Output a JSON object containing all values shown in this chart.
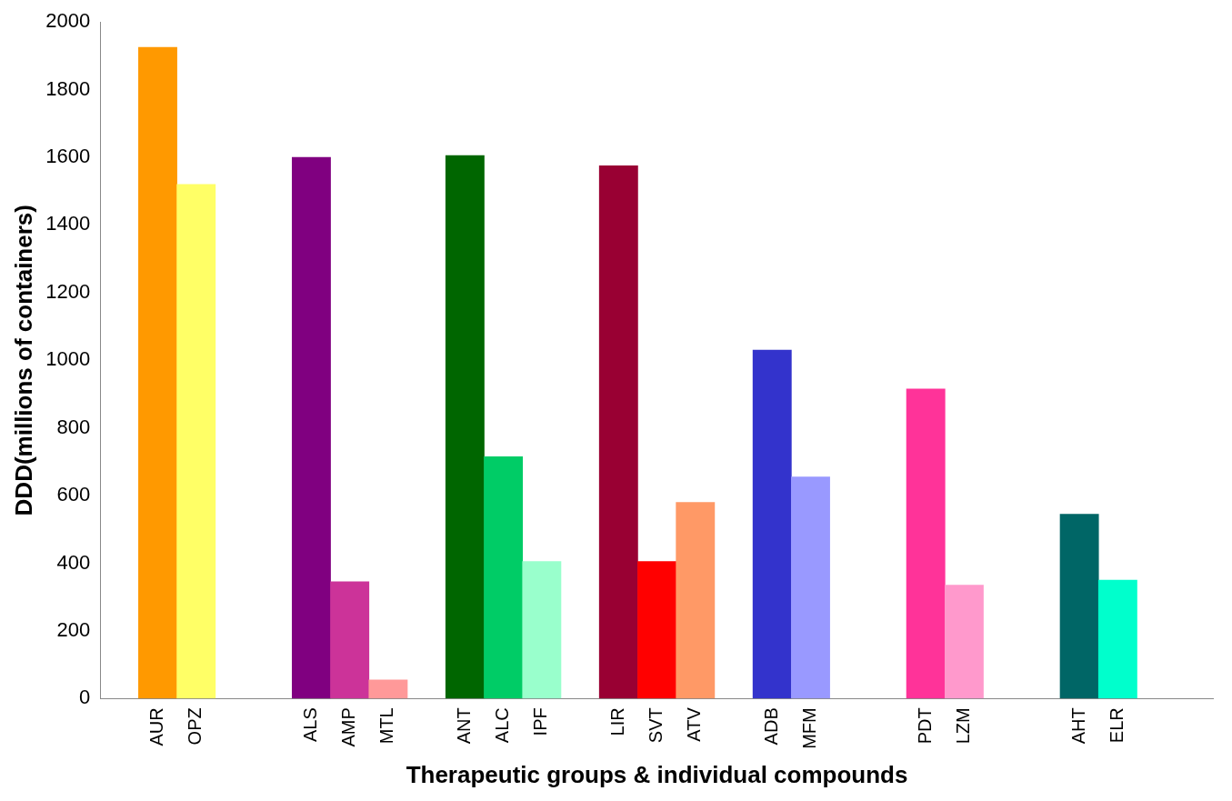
{
  "chart_data": {
    "type": "bar",
    "xlabel": "Therapeutic groups & individual compounds",
    "ylabel": "DDD(millions of containers)",
    "categories": [
      null,
      "AUR",
      "OPZ",
      null,
      null,
      "ALS",
      "AMP",
      "MTL",
      null,
      "ANT",
      "ALC",
      "IPF",
      null,
      "LIR",
      "SVT",
      "ATV",
      null,
      "ADB",
      "MFM",
      null,
      null,
      "PDT",
      "LZM",
      null,
      null,
      "AHT",
      "ELR",
      null,
      null
    ],
    "values": [
      null,
      1925,
      1520,
      null,
      null,
      1600,
      345,
      55,
      null,
      1605,
      715,
      405,
      null,
      1575,
      405,
      580,
      null,
      1030,
      655,
      null,
      null,
      915,
      335,
      null,
      null,
      545,
      350,
      null,
      null
    ],
    "colors": [
      null,
      "#ff9900",
      "#ffff66",
      null,
      null,
      "#800080",
      "#cc3399",
      "#ff9999",
      null,
      "#006600",
      "#00cc66",
      "#99ffcc",
      null,
      "#990033",
      "#ff0000",
      "#ff9966",
      null,
      "#3333cc",
      "#9999ff",
      null,
      null,
      "#ff3399",
      "#ff99cc",
      null,
      null,
      "#006666",
      "#00ffcc",
      null,
      null
    ],
    "ylim": [
      0,
      2000
    ],
    "yticks": [
      0,
      200,
      400,
      600,
      800,
      1000,
      1200,
      1400,
      1600,
      1800,
      2000
    ],
    "grid": false,
    "legend": false
  }
}
